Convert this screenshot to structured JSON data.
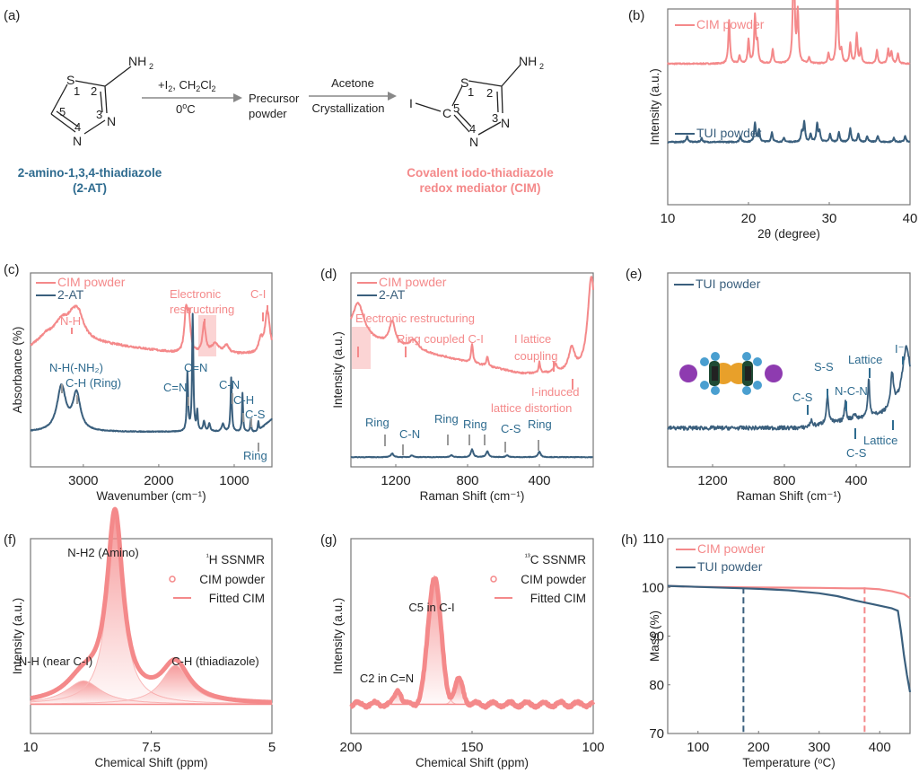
{
  "colors": {
    "cim": "#f4898a",
    "cim_light": "#f9b8b8",
    "blue": "#3a5f7d",
    "blue_text": "#2e6b8f",
    "gray_tick": "#9a9a9a",
    "axis": "#777777",
    "text": "#222222"
  },
  "panel_a": {
    "label": "(a)",
    "reactant": {
      "atoms": {
        "S": "S",
        "N3": "N",
        "N4": "N",
        "NH2": "NH",
        "NH2_sub": "2"
      },
      "numbers": [
        "1",
        "2",
        "3",
        "4",
        "5"
      ],
      "name_line1": "2-amino-1,3,4-thiadiazole",
      "name_line2": "(2-AT)"
    },
    "step1": {
      "above": "+I",
      "above_sub1": "2",
      "above_rest": ", CH",
      "above_sub2": "2",
      "above_rest2": "Cl",
      "above_sub3": "2",
      "below": "0",
      "below_sup": "o",
      "below_unit": "C"
    },
    "intermediate": {
      "line1": "Precursor",
      "line2": "powder"
    },
    "step2": {
      "above": "Acetone",
      "below": "Crystallization"
    },
    "product": {
      "atoms": {
        "S": "S",
        "N3": "N",
        "N4": "N",
        "C5": "C",
        "I": "I",
        "NH2": "NH",
        "NH2_sub": "2"
      },
      "numbers": [
        "1",
        "2",
        "3",
        "4",
        "5"
      ],
      "name_line1": "Covalent iodo-thiadiazole",
      "name_line2": "redox mediator (CIM)"
    }
  },
  "chart_data": [
    {
      "id": "b",
      "panel_label": "(b)",
      "type": "line",
      "xlabel": "2θ (degree)",
      "ylabel": "Intensity (a.u.)",
      "xlim": [
        10,
        40
      ],
      "xticks": [
        10,
        20,
        30,
        40
      ],
      "grid": false,
      "legend_placement": "inline-top-left",
      "series": [
        {
          "name": "CIM powder",
          "color": "#f4898a",
          "offset": 0.72,
          "peaks": [
            [
              17.6,
              0.22
            ],
            [
              18.9,
              0.04
            ],
            [
              20.0,
              0.12
            ],
            [
              20.8,
              0.24
            ],
            [
              21.1,
              0.1
            ],
            [
              23.0,
              0.07
            ],
            [
              25.6,
              0.62
            ],
            [
              26.1,
              0.26
            ],
            [
              27.5,
              0.03
            ],
            [
              29.9,
              0.05
            ],
            [
              31.0,
              0.43
            ],
            [
              31.5,
              0.06
            ],
            [
              32.6,
              0.1
            ],
            [
              33.4,
              0.15
            ],
            [
              33.9,
              0.07
            ],
            [
              35.9,
              0.07
            ],
            [
              37.3,
              0.07
            ],
            [
              37.7,
              0.06
            ],
            [
              38.5,
              0.05
            ]
          ]
        },
        {
          "name": "TUI powder",
          "color": "#3a5f7d",
          "offset": 0.32,
          "peaks": [
            [
              12.4,
              0.03
            ],
            [
              14.2,
              0.02
            ],
            [
              19.0,
              0.03
            ],
            [
              20.8,
              0.1
            ],
            [
              21.3,
              0.06
            ],
            [
              22.9,
              0.05
            ],
            [
              24.4,
              0.02
            ],
            [
              26.6,
              0.05
            ],
            [
              26.9,
              0.1
            ],
            [
              27.7,
              0.04
            ],
            [
              28.5,
              0.09
            ],
            [
              28.8,
              0.05
            ],
            [
              30.1,
              0.04
            ],
            [
              31.2,
              0.05
            ],
            [
              32.6,
              0.07
            ],
            [
              33.6,
              0.04
            ],
            [
              34.7,
              0.03
            ],
            [
              36.0,
              0.03
            ],
            [
              38.0,
              0.02
            ],
            [
              39.4,
              0.03
            ]
          ]
        }
      ]
    },
    {
      "id": "c",
      "panel_label": "(c)",
      "type": "line",
      "xlabel": "Wavenumber (cm⁻¹)",
      "ylabel": "Absorbance (%)",
      "xlim": [
        3700,
        500
      ],
      "xticks": [
        3000,
        2000,
        1000
      ],
      "grid": false,
      "legend_placement": "top-left",
      "series": [
        {
          "name": "CIM powder",
          "color": "#f4898a",
          "offset": 0.58,
          "features": [
            [
              3280,
              0.09,
              120
            ],
            [
              3150,
              0.05,
              60
            ],
            [
              3070,
              0.13,
              90
            ],
            [
              1640,
              0.2,
              25
            ],
            [
              1600,
              0.17,
              25
            ],
            [
              1400,
              0.15,
              25
            ],
            [
              1250,
              0.05,
              60
            ],
            [
              1100,
              0.04,
              40
            ],
            [
              650,
              0.06,
              30
            ],
            [
              560,
              0.22,
              40
            ]
          ]
        },
        {
          "name": "2-AT",
          "color": "#3a5f7d",
          "offset": 0.18,
          "features": [
            [
              3290,
              0.23,
              70
            ],
            [
              3090,
              0.19,
              60
            ],
            [
              1620,
              0.3,
              10
            ],
            [
              1550,
              0.6,
              10
            ],
            [
              1490,
              0.1,
              10
            ],
            [
              1400,
              0.05,
              15
            ],
            [
              1330,
              0.04,
              15
            ],
            [
              1150,
              0.04,
              20
            ],
            [
              1040,
              0.28,
              10
            ],
            [
              890,
              0.2,
              8
            ],
            [
              780,
              0.06,
              8
            ],
            [
              680,
              0.05,
              8
            ]
          ]
        }
      ],
      "annotations": [
        {
          "text": "N-H",
          "color": "cim"
        },
        {
          "text": "Electronic",
          "color": "cim"
        },
        {
          "text": "restructuring",
          "color": "cim"
        },
        {
          "text": "C-I",
          "color": "cim"
        },
        {
          "text": "N-H(-NH₂)",
          "color": "blue"
        },
        {
          "text": "C-H (Ring)",
          "color": "blue"
        },
        {
          "text": "C=N",
          "color": "blue"
        },
        {
          "text": "C=N",
          "color": "blue"
        },
        {
          "text": "C-N",
          "color": "blue"
        },
        {
          "text": "C-H",
          "color": "blue"
        },
        {
          "text": "C-S",
          "color": "blue"
        },
        {
          "text": "Ring",
          "color": "blue"
        }
      ]
    },
    {
      "id": "d",
      "panel_label": "(d)",
      "type": "line",
      "xlabel": "Raman Shift (cm⁻¹)",
      "ylabel": "Intensity (a.u.)",
      "xlim": [
        1450,
        100
      ],
      "xticks": [
        1200,
        800,
        400
      ],
      "grid": false,
      "legend_placement": "top-left",
      "series": [
        {
          "name": "CIM powder",
          "color": "#f4898a",
          "offset": 0.48,
          "features": [
            [
              1410,
              0.18,
              40
            ],
            [
              1220,
              0.12,
              20
            ],
            [
              1100,
              0.05,
              30
            ],
            [
              775,
              0.1,
              6
            ],
            [
              690,
              0.05,
              6
            ],
            [
              400,
              0.06,
              5
            ],
            [
              310,
              0.04,
              10
            ],
            [
              220,
              0.12,
              20
            ],
            [
              110,
              0.5,
              25
            ]
          ]
        },
        {
          "name": "2-AT",
          "color": "#3a5f7d",
          "offset": 0.05,
          "features": [
            [
              1220,
              0.02,
              8
            ],
            [
              1110,
              0.01,
              8
            ],
            [
              890,
              0.01,
              8
            ],
            [
              775,
              0.04,
              8
            ],
            [
              690,
              0.03,
              8
            ],
            [
              580,
              0.01,
              8
            ],
            [
              400,
              0.03,
              8
            ]
          ]
        }
      ],
      "annotations": [
        {
          "text": "Electronic restructuring",
          "color": "cim"
        },
        {
          "text": "Ring coupled C-I",
          "color": "cim"
        },
        {
          "text": "I lattice",
          "color": "cim"
        },
        {
          "text": "coupling",
          "color": "cim"
        },
        {
          "text": "I-induced",
          "color": "cim"
        },
        {
          "text": "lattice distortion",
          "color": "cim"
        },
        {
          "text": "Ring",
          "color": "blue"
        },
        {
          "text": "C-N",
          "color": "blue"
        },
        {
          "text": "Ring",
          "color": "blue"
        },
        {
          "text": "Ring",
          "color": "blue"
        },
        {
          "text": "C-S",
          "color": "blue"
        },
        {
          "text": "Ring",
          "color": "blue"
        }
      ]
    },
    {
      "id": "e",
      "panel_label": "(e)",
      "type": "line",
      "xlabel": "Raman Shift (cm⁻¹)",
      "ylabel": "",
      "xlim": [
        1450,
        100
      ],
      "xticks": [
        1200,
        800,
        400
      ],
      "grid": false,
      "legend_placement": "top-left",
      "series": [
        {
          "name": "TUI powder",
          "color": "#3a5f7d",
          "offset": 0.2,
          "features": [
            [
              650,
              0.03,
              8
            ],
            [
              560,
              0.14,
              8
            ],
            [
              460,
              0.1,
              6
            ],
            [
              410,
              0.03,
              8
            ],
            [
              330,
              0.2,
              6
            ],
            [
              200,
              0.18,
              10
            ],
            [
              120,
              0.33,
              30
            ]
          ]
        }
      ],
      "annotations": [
        {
          "text": "C-S"
        },
        {
          "text": "S-S"
        },
        {
          "text": "N-C-N"
        },
        {
          "text": "Lattice"
        },
        {
          "text": "I⁻"
        },
        {
          "text": "C-S"
        },
        {
          "text": "Lattice"
        }
      ]
    },
    {
      "id": "f",
      "panel_label": "(f)",
      "type": "line",
      "xlabel": "Chemical Shift (ppm)",
      "ylabel": "Intensity (a.u.)",
      "xlim": [
        10,
        5
      ],
      "xticks": [
        10,
        7.5,
        5
      ],
      "xtick_labels": [
        "10",
        "7.5",
        "5"
      ],
      "grid": false,
      "legend_placement": "top-right",
      "legend_title": "¹H SSNMR",
      "series": [
        {
          "name": "CIM powder",
          "marker": "circle",
          "color": "#f4898a"
        },
        {
          "name": "Fitted CIM",
          "color": "#f4898a"
        }
      ],
      "components": [
        {
          "name": "N-H (near C-I)",
          "center": 8.9,
          "height": 0.12,
          "width": 0.7
        },
        {
          "name": "N-H2 (Amino)",
          "center": 8.25,
          "height": 0.95,
          "width": 0.32
        },
        {
          "name": "C-H (thiadiazole)",
          "center": 7.0,
          "height": 0.2,
          "width": 0.55
        }
      ]
    },
    {
      "id": "g",
      "panel_label": "(g)",
      "type": "line",
      "xlabel": "Chemical Shift (ppm)",
      "ylabel": "Intensity (a.u.)",
      "xlim": [
        200,
        100
      ],
      "xticks": [
        200,
        150,
        100
      ],
      "grid": false,
      "legend_placement": "top-right",
      "legend_title": "¹³C SSNMR",
      "series": [
        {
          "name": "CIM powder",
          "marker": "circle",
          "color": "#f4898a"
        },
        {
          "name": "Fitted CIM",
          "color": "#f4898a"
        }
      ],
      "components": [
        {
          "name": "C2 in C=N",
          "center": 180.5,
          "height": 0.08,
          "width": 1.3
        },
        {
          "name": "C5 in C-I",
          "center": 165.5,
          "height": 0.66,
          "width": 2.6
        },
        {
          "name": "",
          "center": 155.5,
          "height": 0.12,
          "width": 1.8
        }
      ]
    },
    {
      "id": "h",
      "panel_label": "(h)",
      "type": "line",
      "xlabel": "Temperature (ᵒC)",
      "ylabel": "Mass (%)",
      "xlim": [
        50,
        450
      ],
      "ylim": [
        70,
        110
      ],
      "xticks": [
        100,
        200,
        300,
        400
      ],
      "yticks": [
        70,
        80,
        90,
        100,
        110
      ],
      "grid": false,
      "legend_placement": "top-left",
      "series": [
        {
          "name": "CIM powder",
          "color": "#f4898a",
          "x": [
            50,
            100,
            200,
            300,
            350,
            375,
            400,
            420,
            440,
            450
          ],
          "y": [
            100.3,
            100.1,
            100.0,
            99.9,
            99.8,
            99.8,
            99.6,
            99.2,
            98.6,
            97.8
          ]
        },
        {
          "name": "TUI powder",
          "color": "#3a5f7d",
          "x": [
            50,
            100,
            175,
            200,
            250,
            300,
            330,
            360,
            390,
            420,
            430,
            435,
            440,
            445,
            450
          ],
          "y": [
            100.3,
            100.1,
            99.8,
            99.7,
            99.4,
            98.8,
            98.2,
            97.3,
            96.5,
            95.7,
            95.2,
            91.0,
            86.0,
            82.0,
            78.5
          ]
        }
      ],
      "markers": [
        {
          "x": 175,
          "color": "#3a5f7d",
          "style": "dashed"
        },
        {
          "x": 375,
          "color": "#f4898a",
          "style": "dashed"
        }
      ]
    }
  ]
}
